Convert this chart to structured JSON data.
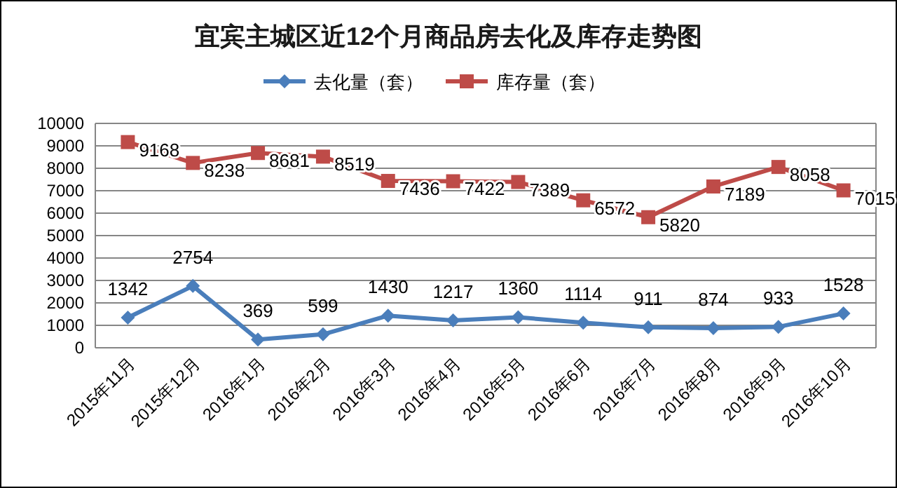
{
  "chart_data": {
    "type": "line",
    "title": "宜宾主城区近12个月商品房去化及库存走势图",
    "categories": [
      "2015年11月",
      "2015年12月",
      "2016年1月",
      "2016年2月",
      "2016年3月",
      "2016年4月",
      "2016年5月",
      "2016年6月",
      "2016年7月",
      "2016年8月",
      "2016年9月",
      "2016年10月"
    ],
    "series": [
      {
        "name": "去化量（套）",
        "color": "#4a7ebb",
        "marker": "diamond",
        "values": [
          1342,
          2754,
          369,
          599,
          1430,
          1217,
          1360,
          1114,
          911,
          874,
          933,
          1528
        ]
      },
      {
        "name": "库存量（套）",
        "color": "#be4b48",
        "marker": "square",
        "values": [
          9168,
          8238,
          8681,
          8519,
          7436,
          7422,
          7389,
          6572,
          5820,
          7189,
          8058,
          7015
        ]
      }
    ],
    "ylim": [
      0,
      10000
    ],
    "yticks": [
      0,
      1000,
      2000,
      3000,
      4000,
      5000,
      6000,
      7000,
      8000,
      9000,
      10000
    ],
    "grid": "y",
    "legend": "top",
    "data_labels": true,
    "line_style": "solid"
  }
}
